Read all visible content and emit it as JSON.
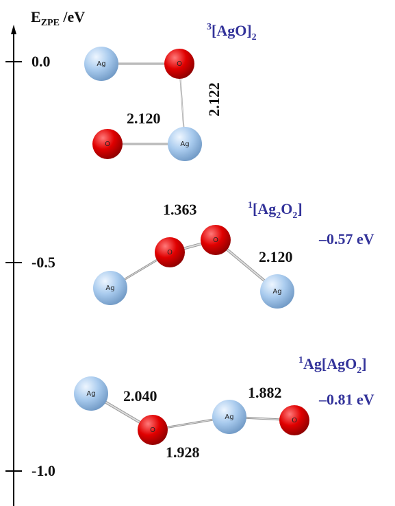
{
  "axis": {
    "label": {
      "symbol": "E",
      "subscript": "ZPE",
      "unit": " /eV"
    },
    "ticks": [
      "0.0",
      "-0.5",
      "-1.0"
    ]
  },
  "structures": [
    {
      "name": [
        {
          "text": "3",
          "style": "sup"
        },
        {
          "text": "[AgO]",
          "style": "normal"
        },
        {
          "text": "2",
          "style": "sub"
        }
      ],
      "atoms": [
        "Ag",
        "O",
        "O",
        "Ag"
      ],
      "bond_labels": [
        "2.120",
        "2.122"
      ]
    },
    {
      "name": [
        {
          "text": "1",
          "style": "sup"
        },
        {
          "text": "[Ag",
          "style": "normal"
        },
        {
          "text": "2",
          "style": "sub"
        },
        {
          "text": "O",
          "style": "normal"
        },
        {
          "text": "2",
          "style": "sub"
        },
        {
          "text": "]",
          "style": "normal"
        }
      ],
      "energy": "–0.57 eV",
      "atoms": [
        "Ag",
        "O",
        "O",
        "Ag"
      ],
      "bond_labels": [
        "1.363",
        "2.120"
      ]
    },
    {
      "name": [
        {
          "text": "1",
          "style": "sup"
        },
        {
          "text": "Ag[AgO",
          "style": "normal"
        },
        {
          "text": "2",
          "style": "sub"
        },
        {
          "text": "]",
          "style": "normal"
        }
      ],
      "energy": "–0.81 eV",
      "atoms": [
        "Ag",
        "O",
        "Ag",
        "O"
      ],
      "bond_labels": [
        "2.040",
        "1.882",
        "1.928"
      ]
    }
  ]
}
